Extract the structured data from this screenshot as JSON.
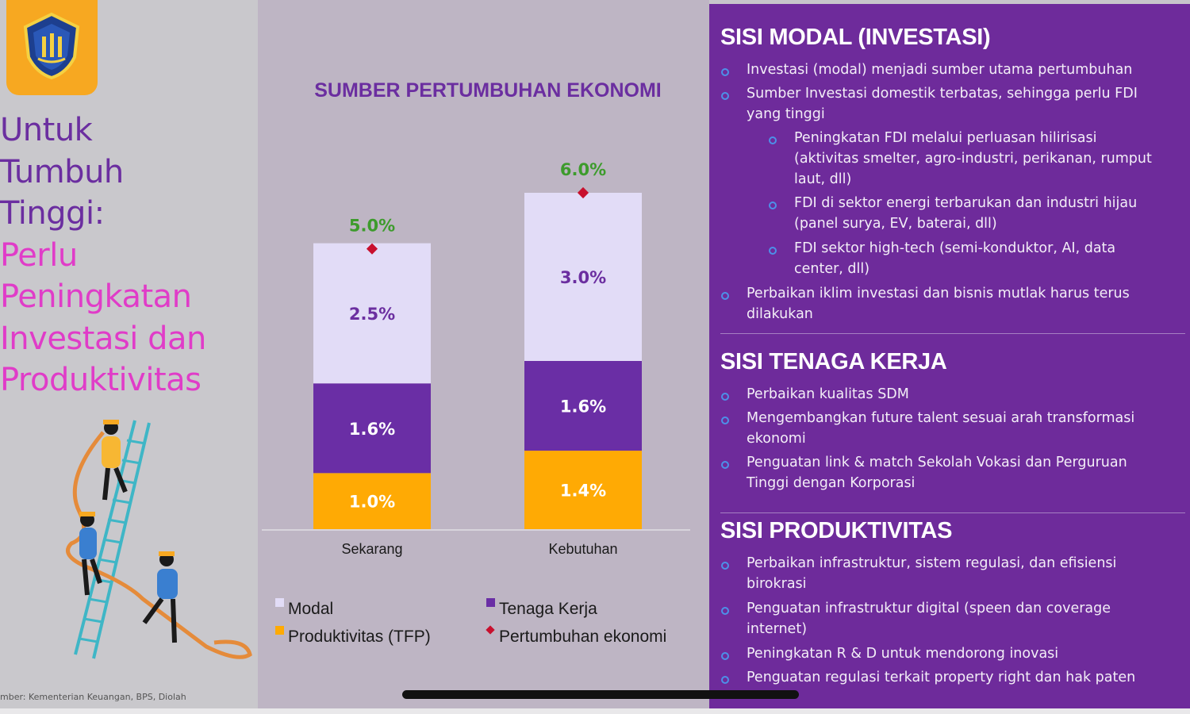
{
  "left": {
    "headline_lines": [
      "Untuk",
      "Tumbuh",
      "Tinggi:",
      "Perlu",
      "Peningkatan",
      "Investasi dan",
      "Produktivitas"
    ],
    "source": "mber: Kementerian Keuangan, BPS, Diolah"
  },
  "colors": {
    "modal": "#e2dcf7",
    "tenaga_kerja": "#6a2ea5",
    "produktivitas": "#ffaa04",
    "pertumbuhan": "#c8102e",
    "title": "#6b2ea0",
    "panel": "#6e2b9b"
  },
  "chart_data": {
    "type": "bar",
    "stacked": true,
    "title": "SUMBER PERTUMBUHAN EKONOMI",
    "categories": [
      "Sekarang",
      "Kebutuhan"
    ],
    "series": [
      {
        "name": "Produktivitas (TFP)",
        "values": [
          1.0,
          1.4
        ],
        "labels": [
          "1.0%",
          "1.4%"
        ]
      },
      {
        "name": "Tenaga Kerja",
        "values": [
          1.6,
          1.6
        ],
        "labels": [
          "1.6%",
          "1.6%"
        ]
      },
      {
        "name": "Modal",
        "values": [
          2.5,
          3.0
        ],
        "labels": [
          "2.5%",
          "3.0%"
        ]
      }
    ],
    "marker_series": {
      "name": "Pertumbuhan ekonomi",
      "values": [
        5.0,
        6.0
      ],
      "labels": [
        "5.0%",
        "6.0%"
      ]
    },
    "legend": [
      "Modal",
      "Tenaga Kerja",
      "Produktivitas (TFP)",
      "Pertumbuhan ekonomi"
    ],
    "legend_position": "bottom",
    "ylim": [
      0,
      6.0
    ]
  },
  "right": {
    "sections": [
      {
        "title": "SISI MODAL (INVESTASI)",
        "items": [
          {
            "level": 1,
            "lines": [
              "Investasi (modal) menjadi sumber utama pertumbuhan"
            ]
          },
          {
            "level": 1,
            "lines": [
              "Sumber Investasi domestik terbatas, sehingga perlu FDI",
              "yang tinggi"
            ]
          },
          {
            "level": 2,
            "lines": [
              "Peningkatan FDI melalui perluasan hilirisasi",
              "(aktivitas smelter, agro-industri, perikanan, rumput",
              "laut, dll)"
            ]
          },
          {
            "level": 2,
            "lines": [
              "FDI di sektor energi terbarukan dan industri hijau",
              "(panel surya, EV, baterai, dll)"
            ]
          },
          {
            "level": 2,
            "lines": [
              "FDI sektor high-tech (semi-konduktor, AI, data",
              "center, dll)"
            ]
          },
          {
            "level": 1,
            "lines": [
              "Perbaikan iklim investasi dan bisnis mutlak harus terus",
              "dilakukan"
            ]
          }
        ]
      },
      {
        "title": "SISI TENAGA KERJA",
        "items": [
          {
            "level": 1,
            "lines": [
              "Perbaikan kualitas SDM"
            ]
          },
          {
            "level": 1,
            "lines": [
              "Mengembangkan future talent sesuai arah transformasi",
              "ekonomi"
            ]
          },
          {
            "level": 1,
            "lines": [
              "Penguatan link & match Sekolah Vokasi dan Perguruan",
              "Tinggi dengan Korporasi"
            ]
          }
        ]
      },
      {
        "title": "SISI PRODUKTIVITAS",
        "items": [
          {
            "level": 1,
            "lines": [
              "Perbaikan infrastruktur, sistem regulasi, dan efisiensi",
              "birokrasi"
            ]
          },
          {
            "level": 1,
            "lines": [
              "Penguatan infrastruktur digital (speen dan coverage",
              "internet)"
            ]
          },
          {
            "level": 1,
            "lines": [
              "Peningkatan R & D untuk mendorong inovasi"
            ]
          },
          {
            "level": 1,
            "lines": [
              "Penguatan regulasi terkait property right dan hak paten"
            ]
          }
        ]
      }
    ]
  }
}
